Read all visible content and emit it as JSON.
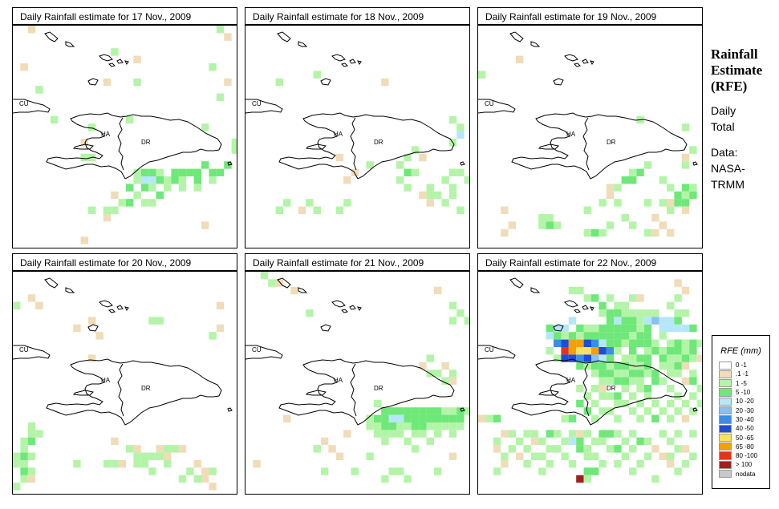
{
  "panels": [
    {
      "title": "Daily Rainfall estimate for  17 Nov., 2009"
    },
    {
      "title": "Daily Rainfall estimate for  18 Nov., 2009"
    },
    {
      "title": "Daily Rainfall estimate for  19 Nov., 2009"
    },
    {
      "title": "Daily Rainfall estimate for  20 Nov., 2009"
    },
    {
      "title": "Daily Rainfall estimate for  21 Nov., 2009"
    },
    {
      "title": "Daily Rainfall estimate for  22 Nov., 2009"
    }
  ],
  "map_labels": {
    "cu": "CU",
    "ha": "HA",
    "dr": "DR"
  },
  "side": {
    "title_lines": [
      "Rainfall",
      "Estimate",
      "(RFE)"
    ],
    "daily_lines": [
      "Daily",
      "Total"
    ],
    "data_lines": [
      "Data:",
      "NASA-",
      "TRMM"
    ]
  },
  "legend": {
    "title": "RFE (mm)",
    "items": [
      {
        "label": "0 -1",
        "color": "#ffffff"
      },
      {
        "label": ".1 -1",
        "color": "#f0dcb8"
      },
      {
        "label": "1 -5",
        "color": "#b4f4a8"
      },
      {
        "label": "5 -10",
        "color": "#6ee878"
      },
      {
        "label": "10 -20",
        "color": "#b4e8f8"
      },
      {
        "label": "20 -30",
        "color": "#88c0f0"
      },
      {
        "label": "30 -40",
        "color": "#3c8ce8"
      },
      {
        "label": "40 -50",
        "color": "#1c4cd8"
      },
      {
        "label": "50 -65",
        "color": "#f8e060"
      },
      {
        "label": "65 -80",
        "color": "#f4a000"
      },
      {
        "label": "80 -100",
        "color": "#e43418"
      },
      {
        "label": "> 100",
        "color": "#a02020"
      },
      {
        "label": "nodata",
        "color": "#c8c8c8"
      }
    ]
  }
}
